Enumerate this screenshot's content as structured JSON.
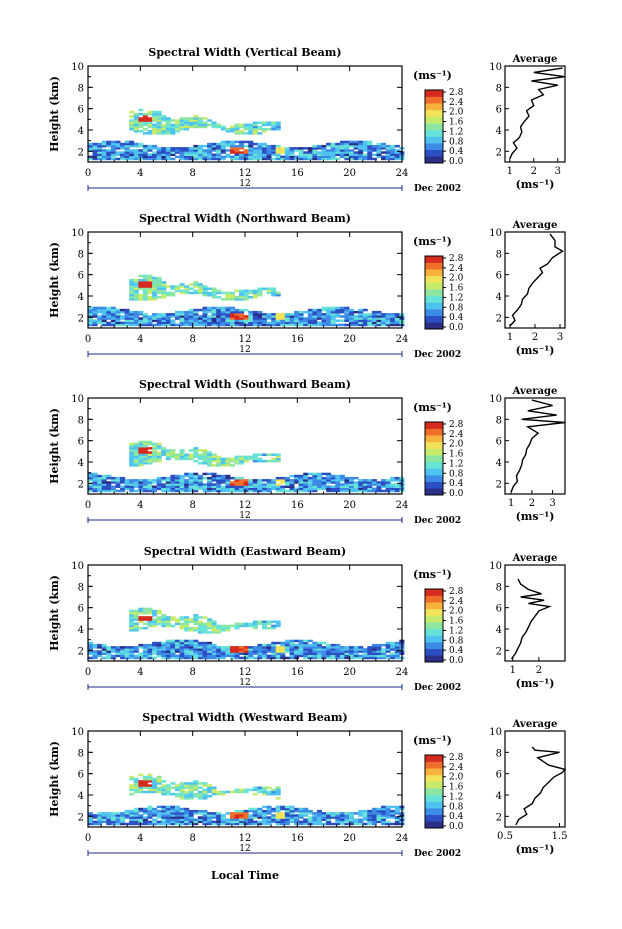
{
  "figure": {
    "xlabel": "Local Time",
    "date_label": "Dec 2002",
    "day_label": "12",
    "colorbar_unit": "(ms⁻¹)",
    "average_title": "Average",
    "average_xunit": "(ms⁻¹)"
  },
  "colorbar": {
    "ticks": [
      "2.8",
      "2.4",
      "2.0",
      "1.6",
      "1.2",
      "0.8",
      "0.4",
      "0.0"
    ],
    "colors": [
      "#2a2f85",
      "#2c4fc4",
      "#3c8be6",
      "#4fc3f0",
      "#66e3d6",
      "#8de6a0",
      "#c6ea6a",
      "#f2e45a",
      "#f6b23c",
      "#ef6e2a",
      "#d62a1e"
    ]
  },
  "chart_data": [
    {
      "type": "heatmap",
      "title": "Spectral Width (Vertical Beam)",
      "xlabel": "",
      "ylabel": "Height (km)",
      "xlim": [
        0,
        24
      ],
      "ylim": [
        1,
        10
      ],
      "xticks": [
        0,
        4,
        8,
        12,
        16,
        20,
        24
      ],
      "yticks": [
        2,
        4,
        6,
        8,
        10
      ],
      "colorbar_range": [
        0.0,
        2.8
      ],
      "average": {
        "xlabel": "(ms⁻¹)",
        "xlim": [
          0.8,
          3.3
        ],
        "xticks": [
          1,
          2,
          3
        ],
        "height": [
          1.3,
          1.8,
          2.3,
          2.8,
          3.3,
          3.8,
          4.3,
          4.8,
          5.3,
          5.8,
          6.3,
          6.8,
          7.3,
          7.8,
          8.2,
          8.6,
          9.0,
          9.4,
          9.8
        ],
        "value": [
          1.0,
          1.1,
          1.3,
          1.15,
          1.4,
          1.5,
          1.45,
          1.6,
          1.8,
          1.7,
          2.0,
          1.9,
          2.4,
          2.2,
          3.0,
          1.9,
          3.3,
          2.0,
          3.2
        ]
      }
    },
    {
      "type": "heatmap",
      "title": "Spectral Width (Northward Beam)",
      "xlabel": "",
      "ylabel": "Height (km)",
      "xlim": [
        0,
        24
      ],
      "ylim": [
        1,
        10
      ],
      "xticks": [
        0,
        4,
        8,
        12,
        16,
        20,
        24
      ],
      "yticks": [
        2,
        4,
        6,
        8,
        10
      ],
      "colorbar_range": [
        0.0,
        2.8
      ],
      "average": {
        "xlabel": "(ms⁻¹)",
        "xlim": [
          0.8,
          3.2
        ],
        "xticks": [
          1,
          2,
          3
        ],
        "height": [
          1.2,
          1.7,
          2.2,
          2.7,
          3.2,
          3.7,
          4.2,
          4.7,
          5.2,
          5.7,
          6.2,
          6.6,
          7.0,
          7.6,
          8.2,
          8.6,
          9.2,
          9.8
        ],
        "value": [
          1.0,
          1.2,
          1.1,
          1.3,
          1.45,
          1.5,
          1.7,
          1.75,
          1.9,
          2.1,
          2.3,
          2.2,
          2.5,
          2.7,
          3.1,
          2.8,
          2.8,
          2.6
        ]
      }
    },
    {
      "type": "heatmap",
      "title": "Spectral Width (Southward Beam)",
      "xlabel": "",
      "ylabel": "Height (km)",
      "xlim": [
        0,
        24
      ],
      "ylim": [
        1,
        10
      ],
      "xticks": [
        0,
        4,
        8,
        12,
        16,
        20,
        24
      ],
      "yticks": [
        2,
        4,
        6,
        8,
        10
      ],
      "colorbar_range": [
        0.0,
        2.8
      ],
      "average": {
        "xlabel": "(ms⁻¹)",
        "xlim": [
          0.7,
          3.6
        ],
        "xticks": [
          1,
          2,
          3
        ],
        "height": [
          1.2,
          1.7,
          2.2,
          2.7,
          3.2,
          3.7,
          4.2,
          4.7,
          5.2,
          5.7,
          6.2,
          6.7,
          7.3,
          7.7,
          8.0,
          8.4,
          8.8,
          9.3,
          9.8
        ],
        "value": [
          1.0,
          1.1,
          1.3,
          1.25,
          1.4,
          1.5,
          1.55,
          1.7,
          1.75,
          1.9,
          2.0,
          2.3,
          1.8,
          3.6,
          1.5,
          3.2,
          1.8,
          3.0,
          2.0
        ]
      }
    },
    {
      "type": "heatmap",
      "title": "Spectral Width (Eastward Beam)",
      "xlabel": "",
      "ylabel": "Height (km)",
      "xlim": [
        0,
        24
      ],
      "ylim": [
        1,
        10
      ],
      "xticks": [
        0,
        4,
        8,
        12,
        16,
        20,
        24
      ],
      "yticks": [
        2,
        4,
        6,
        8,
        10
      ],
      "colorbar_range": [
        0.0,
        2.8
      ],
      "average": {
        "xlabel": "(ms⁻¹)",
        "xlim": [
          0.7,
          3.0
        ],
        "xticks": [
          1,
          2
        ],
        "height": [
          1.2,
          1.7,
          2.2,
          2.7,
          3.2,
          3.7,
          4.2,
          4.7,
          5.2,
          5.7,
          6.1,
          6.4,
          6.7,
          7.0,
          7.3,
          7.7,
          8.2,
          8.7
        ],
        "value": [
          0.95,
          1.1,
          1.2,
          1.3,
          1.35,
          1.5,
          1.6,
          1.7,
          1.85,
          2.0,
          2.4,
          1.6,
          2.2,
          1.3,
          2.1,
          1.6,
          1.3,
          1.2
        ]
      }
    },
    {
      "type": "heatmap",
      "title": "Spectral Width (Westward Beam)",
      "xlabel": "Local Time",
      "ylabel": "Height (km)",
      "xlim": [
        0,
        24
      ],
      "ylim": [
        1,
        10
      ],
      "xticks": [
        0,
        4,
        8,
        12,
        16,
        20,
        24
      ],
      "yticks": [
        2,
        4,
        6,
        8,
        10
      ],
      "colorbar_range": [
        0.0,
        2.8
      ],
      "average": {
        "xlabel": "(ms⁻¹)",
        "xlim": [
          0.5,
          1.6
        ],
        "xticks": [
          0.5,
          1.5
        ],
        "xticklabels": [
          "0.5",
          "1.5"
        ],
        "height": [
          1.2,
          1.7,
          2.2,
          2.7,
          3.2,
          3.7,
          4.2,
          4.7,
          5.2,
          5.7,
          6.1,
          6.4,
          6.8,
          7.5,
          8.0,
          8.2,
          8.5
        ],
        "value": [
          0.7,
          0.75,
          0.9,
          0.85,
          1.0,
          1.05,
          1.15,
          1.2,
          1.3,
          1.4,
          1.55,
          1.6,
          1.3,
          1.1,
          1.5,
          1.05,
          1.0
        ]
      }
    }
  ]
}
